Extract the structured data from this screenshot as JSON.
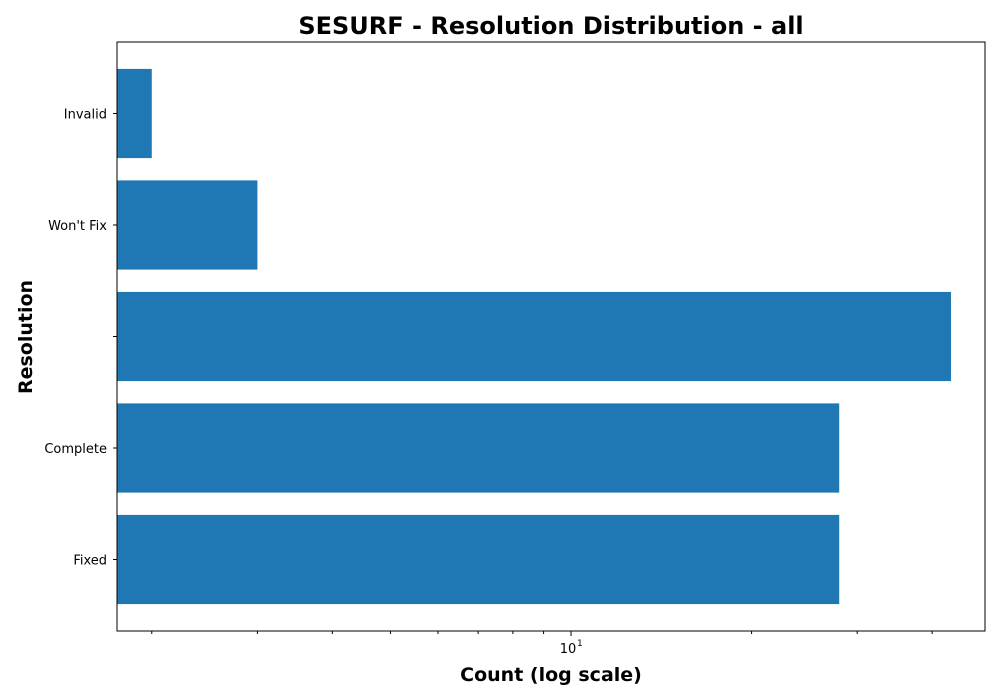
{
  "chart_data": {
    "type": "bar",
    "orientation": "horizontal",
    "title": "SESURF - Resolution Distribution - all",
    "xlabel": "Count (log scale)",
    "ylabel": "Resolution",
    "x_scale": "log",
    "x_tick_labels": [
      "10",
      "1"
    ],
    "categories": [
      "Invalid",
      "Won't Fix",
      "",
      "Complete",
      "Fixed"
    ],
    "values": [
      2,
      3,
      43,
      28,
      28
    ],
    "xlim": [
      1.75,
      49
    ],
    "bar_color": "#1f77b4",
    "grid": false,
    "legend": "none"
  }
}
